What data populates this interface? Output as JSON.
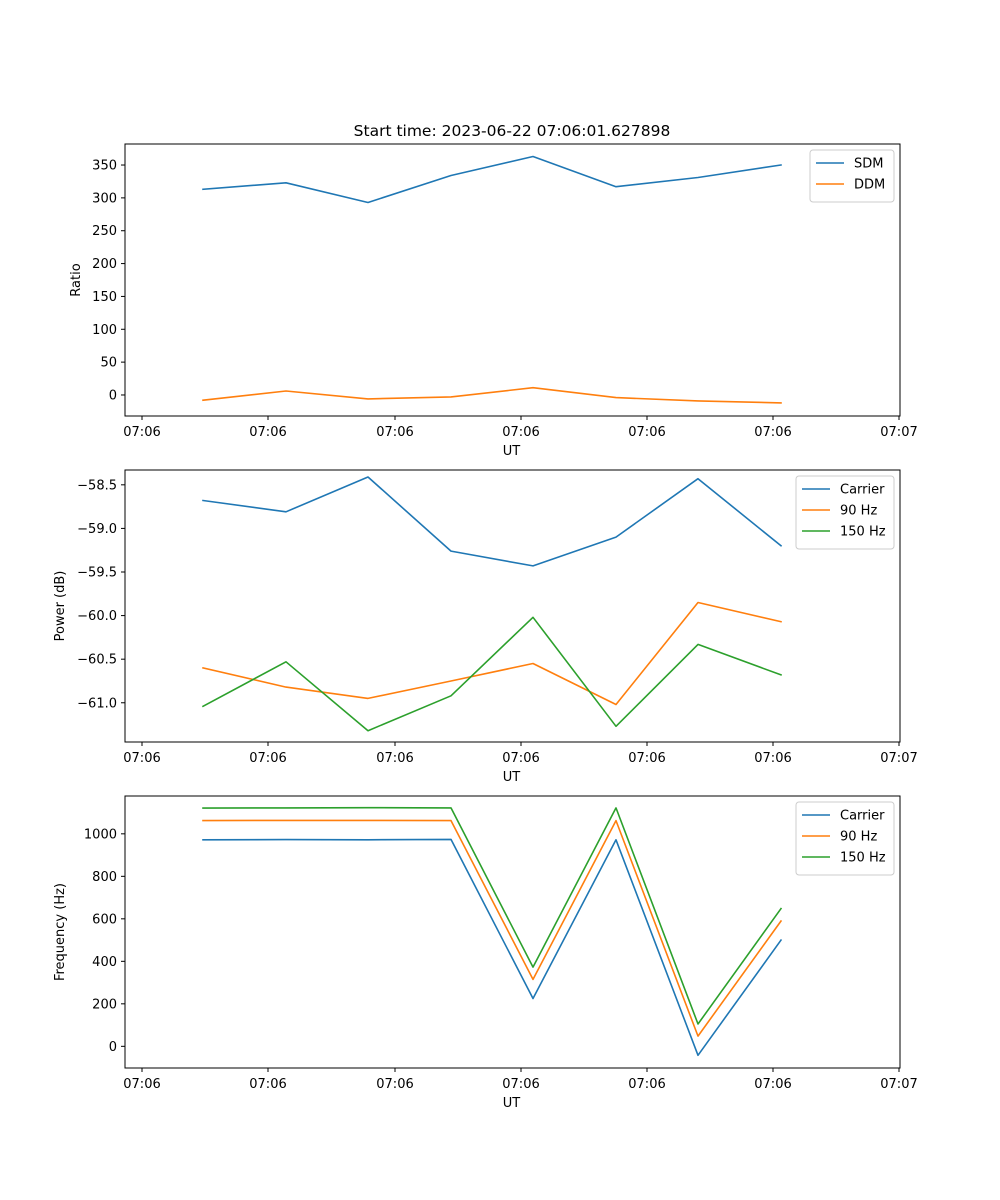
{
  "figure": {
    "title": "Start time: 2023-06-22 07:06:01.627898"
  },
  "chart_data": [
    {
      "type": "line",
      "xlabel": "UT",
      "ylabel": "Ratio",
      "x_ticks": [
        "07:06",
        "07:06",
        "07:06",
        "07:06",
        "07:06",
        "07:07"
      ],
      "y_ticks": [
        0,
        50,
        100,
        150,
        200,
        250,
        300,
        350
      ],
      "ylim": [
        -32,
        382
      ],
      "legend_position": "top-right",
      "series": [
        {
          "name": "SDM",
          "color": "#1f77b4",
          "values": [
            313,
            323,
            293,
            334,
            363,
            317,
            331,
            350
          ]
        },
        {
          "name": "DDM",
          "color": "#ff7f0e",
          "values": [
            -8,
            6,
            -6,
            -3,
            11,
            -4,
            -9,
            -12
          ]
        }
      ]
    },
    {
      "type": "line",
      "xlabel": "UT",
      "ylabel": "Power (dB)",
      "x_ticks": [
        "07:06",
        "07:06",
        "07:06",
        "07:06",
        "07:06",
        "07:07"
      ],
      "y_ticks": [
        -61.0,
        -60.5,
        -60.0,
        -59.5,
        -59.0,
        -58.5
      ],
      "ylim": [
        -61.45,
        -58.33
      ],
      "legend_position": "top-right",
      "series": [
        {
          "name": "Carrier",
          "color": "#1f77b4",
          "values": [
            -58.68,
            -58.81,
            -58.41,
            -59.26,
            -59.43,
            -59.1,
            -58.43,
            -59.2
          ]
        },
        {
          "name": "90 Hz",
          "color": "#ff7f0e",
          "values": [
            -60.6,
            -60.82,
            -60.95,
            -60.75,
            -60.55,
            -61.02,
            -59.85,
            -60.07
          ]
        },
        {
          "name": "150 Hz",
          "color": "#2ca02c",
          "values": [
            -61.04,
            -60.53,
            -61.32,
            -60.92,
            -60.02,
            -61.27,
            -60.33,
            -60.68
          ]
        }
      ]
    },
    {
      "type": "line",
      "xlabel": "UT",
      "ylabel": "Frequency (Hz)",
      "x_ticks": [
        "07:06",
        "07:06",
        "07:06",
        "07:06",
        "07:06",
        "07:07"
      ],
      "y_ticks": [
        0,
        200,
        400,
        600,
        800,
        1000
      ],
      "ylim": [
        -102,
        1178
      ],
      "legend_position": "top-right",
      "series": [
        {
          "name": "Carrier",
          "color": "#1f77b4",
          "values": [
            972,
            973,
            972,
            974,
            225,
            972,
            -42,
            500
          ]
        },
        {
          "name": "90 Hz",
          "color": "#ff7f0e",
          "values": [
            1062,
            1063,
            1063,
            1062,
            315,
            1062,
            48,
            590
          ]
        },
        {
          "name": "150 Hz",
          "color": "#2ca02c",
          "values": [
            1121,
            1122,
            1123,
            1122,
            373,
            1122,
            105,
            648
          ]
        }
      ]
    }
  ]
}
